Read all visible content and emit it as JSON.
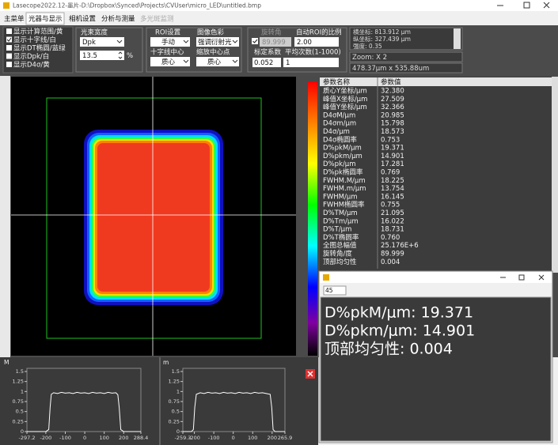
{
  "window": {
    "title": "Lasecope2022.12-墨片-D:\\Dropbox\\Synced\\Projects\\CVUser\\micro_LED\\untitled.bmp"
  },
  "tabs": [
    "主菜单",
    "光器与显示",
    "相机设置",
    "分析与测量",
    "多光斑监测"
  ],
  "display_options": [
    {
      "label": "显示计算范围/黄",
      "checked": false
    },
    {
      "label": "显示十字线/白",
      "checked": true
    },
    {
      "label": "显示DT椭圆/蓝绿",
      "checked": false
    },
    {
      "label": "显示Dpk/白",
      "checked": false
    },
    {
      "label": "显示D4σ/黄",
      "checked": false
    }
  ],
  "beam_width": {
    "label": "光束宽度",
    "method": "Dpk",
    "percent": "13.5",
    "unit": "%"
  },
  "roi": {
    "label": "ROI设置",
    "value": "手动"
  },
  "color_mode": {
    "label": "图像色彩",
    "value": "强调衍射光"
  },
  "crosshair_center": {
    "label": "十字线中心",
    "value": "质心"
  },
  "zoom_center": {
    "label": "缩放中心点",
    "value": "质心"
  },
  "rotation": {
    "label": "旋转角",
    "checked": true,
    "value": "89.999"
  },
  "auto_roi": {
    "label": "自动ROI的比例",
    "value": "2.00"
  },
  "calibration": {
    "label": "标定系数",
    "value": "0.052"
  },
  "averaging": {
    "label": "平均次数(1-1000)",
    "value": "1"
  },
  "cursor_info": [
    "横坐标: 813.912 μm",
    "纵坐标: 327.439 μm",
    "强度: 0.35"
  ],
  "zoom": "Zoom: X 2",
  "image_size": "478.37μm x 535.88um",
  "table": {
    "header": [
      "参数名称",
      "参数值"
    ],
    "rows": [
      [
        "质心Y坐标/μm",
        "32.380"
      ],
      [
        "峰值X坐标/μm",
        "27.509"
      ],
      [
        "峰值Y坐标/μm",
        "32.366"
      ],
      [
        "D4σM/μm",
        "20.985"
      ],
      [
        "D4σm/μm",
        "15.798"
      ],
      [
        "D4σ/μm",
        "18.573"
      ],
      [
        "D4σ椭圆率",
        "0.753"
      ],
      [
        "D%pkM/μm",
        "19.371"
      ],
      [
        "D%pkm/μm",
        "14.901"
      ],
      [
        "D%pk/μm",
        "17.281"
      ],
      [
        "D%pk椭圆率",
        "0.769"
      ],
      [
        "FWHM.M/μm",
        "18.225"
      ],
      [
        "FWHM.m/μm",
        "13.754"
      ],
      [
        "FWHM/μm",
        "16.145"
      ],
      [
        "FWHM椭圆率",
        "0.755"
      ],
      [
        "D%TM/μm",
        "21.095"
      ],
      [
        "D%Tm/μm",
        "16.022"
      ],
      [
        "D%T/μm",
        "18.731"
      ],
      [
        "D%T椭圆率",
        "0.760"
      ],
      [
        "全图总幅值",
        "25.176E+6"
      ],
      [
        "旋转角/度",
        "89.999"
      ],
      [
        "顶部均匀性",
        "0.004"
      ]
    ]
  },
  "popup": {
    "input": "45",
    "lines": [
      "D%pkM/μm: 19.371",
      "D%pkm/μm: 14.901",
      "顶部均匀性: 0.004"
    ]
  },
  "chart_data": [
    {
      "type": "line",
      "label": "M",
      "color": "#ffffff",
      "xlim": [
        -297.2,
        288.4
      ],
      "ylim": [
        0,
        1.5
      ],
      "xticks": [
        -297.2,
        -200,
        -100,
        0,
        100,
        200,
        288.4
      ],
      "yticks": [
        0,
        0.25,
        0.5,
        0.75,
        1,
        1.25,
        1.5
      ],
      "x": [
        -297.2,
        -200,
        -185,
        -178,
        -172,
        -160,
        -140,
        -120,
        -100,
        -80,
        -60,
        -40,
        -20,
        0,
        20,
        40,
        60,
        80,
        100,
        120,
        140,
        160,
        170,
        177,
        185,
        200,
        288.4
      ],
      "values": [
        0,
        0,
        0.05,
        0.6,
        0.93,
        0.97,
        0.95,
        0.98,
        0.96,
        0.97,
        0.95,
        0.98,
        0.96,
        0.97,
        0.95,
        0.98,
        0.96,
        0.97,
        0.95,
        0.98,
        0.96,
        0.97,
        0.92,
        0.6,
        0.05,
        0,
        0
      ]
    },
    {
      "type": "line",
      "label": "m",
      "color": "#ffffff",
      "xlim": [
        -259.3,
        265.9
      ],
      "ylim": [
        0,
        1.5
      ],
      "xticks": [
        -259.3,
        -200,
        -100,
        0,
        100,
        200,
        265.9
      ],
      "yticks": [
        0,
        0.25,
        0.5,
        0.75,
        1,
        1.25,
        1.5
      ],
      "x": [
        -259.3,
        -215,
        -205,
        -198,
        -190,
        -170,
        -150,
        -130,
        -110,
        -90,
        -70,
        -50,
        -30,
        -10,
        10,
        30,
        50,
        70,
        90,
        110,
        130,
        150,
        170,
        190,
        198,
        205,
        215,
        265.9
      ],
      "values": [
        0,
        0,
        0.05,
        0.6,
        0.93,
        0.97,
        0.95,
        0.98,
        0.96,
        0.97,
        0.95,
        0.98,
        0.96,
        0.97,
        0.95,
        0.98,
        0.96,
        0.97,
        0.95,
        0.98,
        0.96,
        0.97,
        0.95,
        0.93,
        0.6,
        0.05,
        0,
        0
      ]
    }
  ]
}
